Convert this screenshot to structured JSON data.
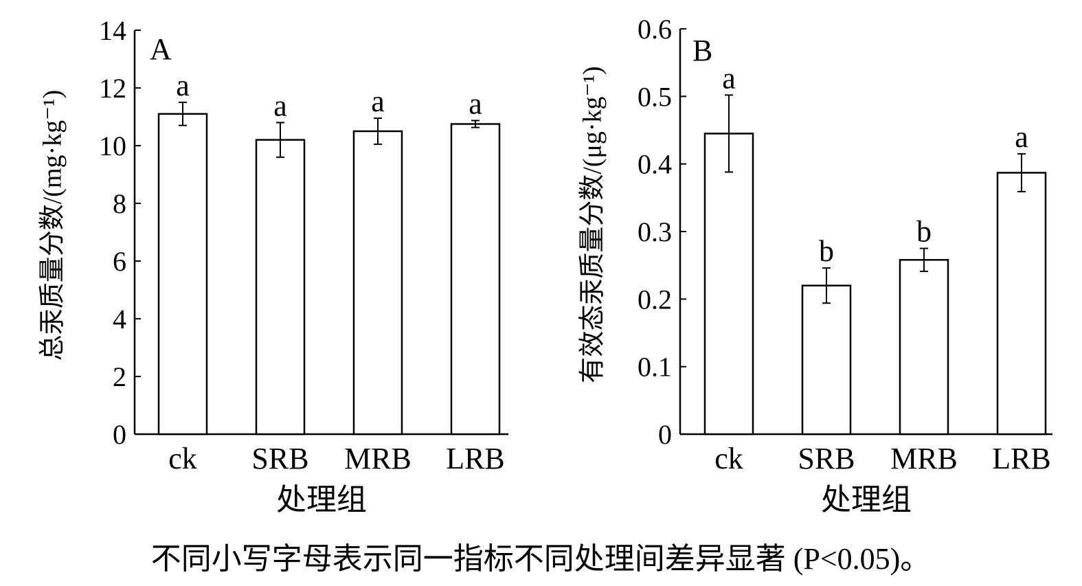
{
  "chart_data": [
    {
      "type": "bar",
      "panel_label": "A",
      "categories": [
        "ck",
        "SRB",
        "MRB",
        "LRB"
      ],
      "values": [
        11.1,
        10.2,
        10.5,
        10.75
      ],
      "errors": [
        0.4,
        0.6,
        0.45,
        0.12
      ],
      "significance": [
        "a",
        "a",
        "a",
        "a"
      ],
      "ylabel": "总汞质量分数/(mg·kg⁻¹)",
      "xlabel": "处理组",
      "ylim": [
        0,
        14
      ],
      "yticks": [
        "0",
        "2",
        "4",
        "6",
        "8",
        "10",
        "12",
        "14"
      ],
      "bar_fill": "#ffffff",
      "bar_stroke": "#000000",
      "grid": false
    },
    {
      "type": "bar",
      "panel_label": "B",
      "categories": [
        "ck",
        "SRB",
        "MRB",
        "LRB"
      ],
      "values": [
        0.445,
        0.22,
        0.258,
        0.387
      ],
      "errors": [
        0.057,
        0.026,
        0.017,
        0.028
      ],
      "significance": [
        "a",
        "b",
        "b",
        "a"
      ],
      "ylabel": "有效态汞质量分数/(μg·kg⁻¹)",
      "xlabel": "处理组",
      "ylim": [
        0,
        0.6
      ],
      "yticks": [
        "0",
        "0.1",
        "0.2",
        "0.3",
        "0.4",
        "0.5",
        "0.6"
      ],
      "bar_fill": "#ffffff",
      "bar_stroke": "#000000",
      "grid": false
    }
  ],
  "note": "不同小写字母表示同一指标不同处理间差异显著 (P<0.05)。"
}
